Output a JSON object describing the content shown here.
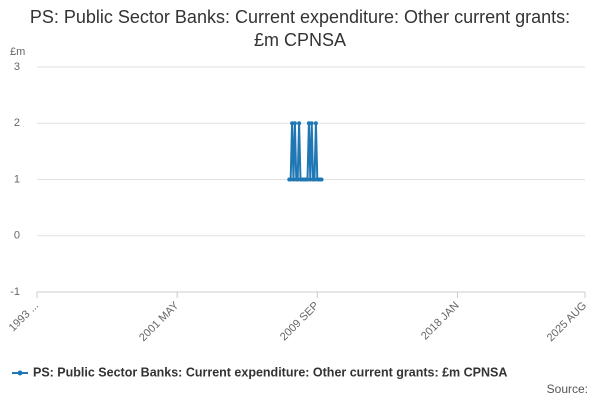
{
  "chart_data": {
    "type": "line",
    "title": "PS: Public Sector Banks: Current expenditure: Other current grants: £m CPNSA",
    "y_unit": "£m",
    "source": "Source:",
    "x": [
      "2008 JAN",
      "2008 FEB",
      "2008 MAR",
      "2008 APR",
      "2008 MAY",
      "2008 JUN",
      "2008 JUL",
      "2008 AUG",
      "2008 SEP",
      "2008 OCT",
      "2008 NOV",
      "2008 DEC",
      "2009 JAN",
      "2009 FEB",
      "2009 MAR",
      "2009 APR",
      "2009 MAY",
      "2009 JUN",
      "2009 JUL",
      "2009 AUG",
      "2009 SEP",
      "2009 OCT",
      "2009 NOV",
      "2009 DEC"
    ],
    "series": [
      {
        "name": "PS: Public Sector Banks: Current expenditure: Other current grants: £m CPNSA",
        "color": "#1f77b4",
        "values": [
          1,
          1,
          2,
          1,
          2,
          1,
          1,
          2,
          1,
          1,
          1,
          1,
          1,
          1,
          2,
          1,
          2,
          1,
          1,
          2,
          1,
          1,
          1,
          1
        ]
      }
    ],
    "xlim": [
      "1993 JAN",
      "2025 AUG"
    ],
    "xticks": [
      {
        "value": "1993 JAN",
        "label": "1993 ..."
      },
      "2001 MAY",
      "2009 SEP",
      "2018 JAN",
      "2025 AUG"
    ],
    "ylim": [
      -1,
      3
    ],
    "yticks": [
      -1,
      0,
      1,
      2,
      3
    ],
    "grid": true,
    "legend": "bottom"
  }
}
